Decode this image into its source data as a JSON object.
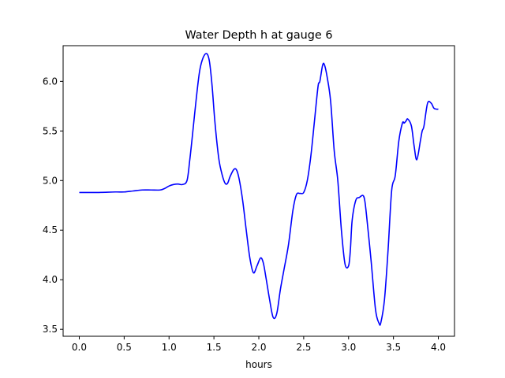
{
  "chart_data": {
    "type": "line",
    "title": "Water Depth h at gauge 6",
    "xlabel": "hours",
    "ylabel": "",
    "xlim": [
      -0.18,
      4.18
    ],
    "ylim": [
      3.43,
      6.36
    ],
    "xticks": [
      0.0,
      0.5,
      1.0,
      1.5,
      2.0,
      2.5,
      3.0,
      3.5,
      4.0
    ],
    "xtick_labels": [
      "0.0",
      "0.5",
      "1.0",
      "1.5",
      "2.0",
      "2.5",
      "3.0",
      "3.5",
      "4.0"
    ],
    "yticks": [
      3.5,
      4.0,
      4.5,
      5.0,
      5.5,
      6.0
    ],
    "ytick_labels": [
      "3.5",
      "4.0",
      "4.5",
      "5.0",
      "5.5",
      "6.0"
    ],
    "grid": false,
    "legend": "none",
    "series": [
      {
        "color": "#0000ff",
        "x": [
          0.0,
          0.2,
          0.4,
          0.5,
          0.6,
          0.7,
          0.8,
          0.9,
          0.95,
          1.0,
          1.05,
          1.1,
          1.15,
          1.2,
          1.23,
          1.26,
          1.3,
          1.34,
          1.38,
          1.42,
          1.45,
          1.48,
          1.51,
          1.55,
          1.58,
          1.62,
          1.65,
          1.68,
          1.72,
          1.75,
          1.78,
          1.82,
          1.86,
          1.9,
          1.94,
          1.98,
          2.02,
          2.05,
          2.08,
          2.12,
          2.16,
          2.2,
          2.24,
          2.28,
          2.33,
          2.38,
          2.42,
          2.46,
          2.5,
          2.54,
          2.58,
          2.62,
          2.66,
          2.68,
          2.71,
          2.73,
          2.76,
          2.8,
          2.84,
          2.88,
          2.92,
          2.96,
          3.0,
          3.02,
          3.04,
          3.08,
          3.12,
          3.16,
          3.18,
          3.2,
          3.25,
          3.3,
          3.34,
          3.36,
          3.4,
          3.44,
          3.48,
          3.52,
          3.56,
          3.6,
          3.62,
          3.64,
          3.66,
          3.7,
          3.73,
          3.76,
          3.8,
          3.82,
          3.84,
          3.88,
          3.92,
          3.95,
          3.98,
          4.0
        ],
        "y": [
          4.88,
          4.88,
          4.885,
          4.885,
          4.895,
          4.905,
          4.905,
          4.905,
          4.92,
          4.945,
          4.96,
          4.965,
          4.96,
          5.0,
          5.2,
          5.45,
          5.8,
          6.1,
          6.24,
          6.28,
          6.2,
          5.95,
          5.6,
          5.25,
          5.1,
          4.98,
          4.97,
          5.04,
          5.11,
          5.11,
          5.02,
          4.8,
          4.5,
          4.22,
          4.07,
          4.14,
          4.22,
          4.17,
          4.02,
          3.8,
          3.62,
          3.66,
          3.9,
          4.1,
          4.35,
          4.7,
          4.86,
          4.87,
          4.88,
          5.0,
          5.25,
          5.6,
          5.95,
          6.0,
          6.16,
          6.17,
          6.05,
          5.8,
          5.3,
          5.0,
          4.5,
          4.16,
          4.14,
          4.3,
          4.6,
          4.8,
          4.83,
          4.85,
          4.8,
          4.65,
          4.2,
          3.7,
          3.56,
          3.57,
          3.8,
          4.3,
          4.9,
          5.05,
          5.4,
          5.58,
          5.58,
          5.6,
          5.62,
          5.55,
          5.35,
          5.21,
          5.4,
          5.5,
          5.55,
          5.78,
          5.78,
          5.73,
          5.72,
          5.72
        ]
      }
    ]
  }
}
